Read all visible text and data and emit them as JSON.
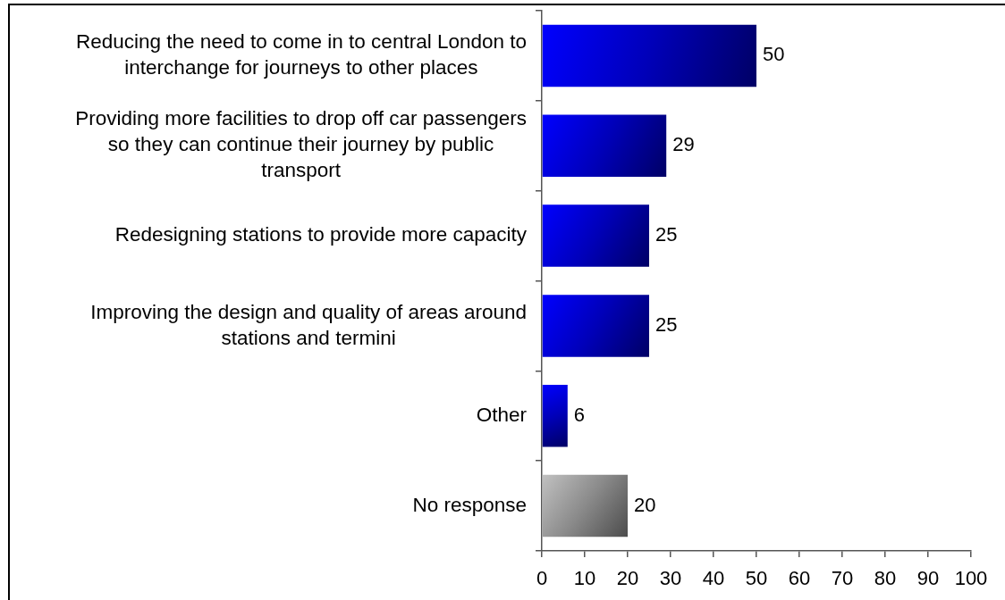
{
  "chart_data": {
    "type": "bar",
    "orientation": "horizontal",
    "categories": [
      "Reducing the need to come in to central London to interchange for journeys to other places",
      "Providing more facilities to drop off car passengers so they can continue their journey by public transport",
      "Redesigning stations to provide more capacity",
      "Improving the design and quality of areas around stations and termini",
      "Other",
      "No response"
    ],
    "values": [
      50,
      29,
      25,
      25,
      6,
      20
    ],
    "colors": [
      "#0000b8",
      "#0000b8",
      "#0000b8",
      "#0000b8",
      "#0000b8",
      "#8a8a8a"
    ],
    "xlim": [
      0,
      100
    ],
    "xticks": [
      0,
      10,
      20,
      30,
      40,
      50,
      60,
      70,
      80,
      90,
      100
    ],
    "data_labels": true
  }
}
